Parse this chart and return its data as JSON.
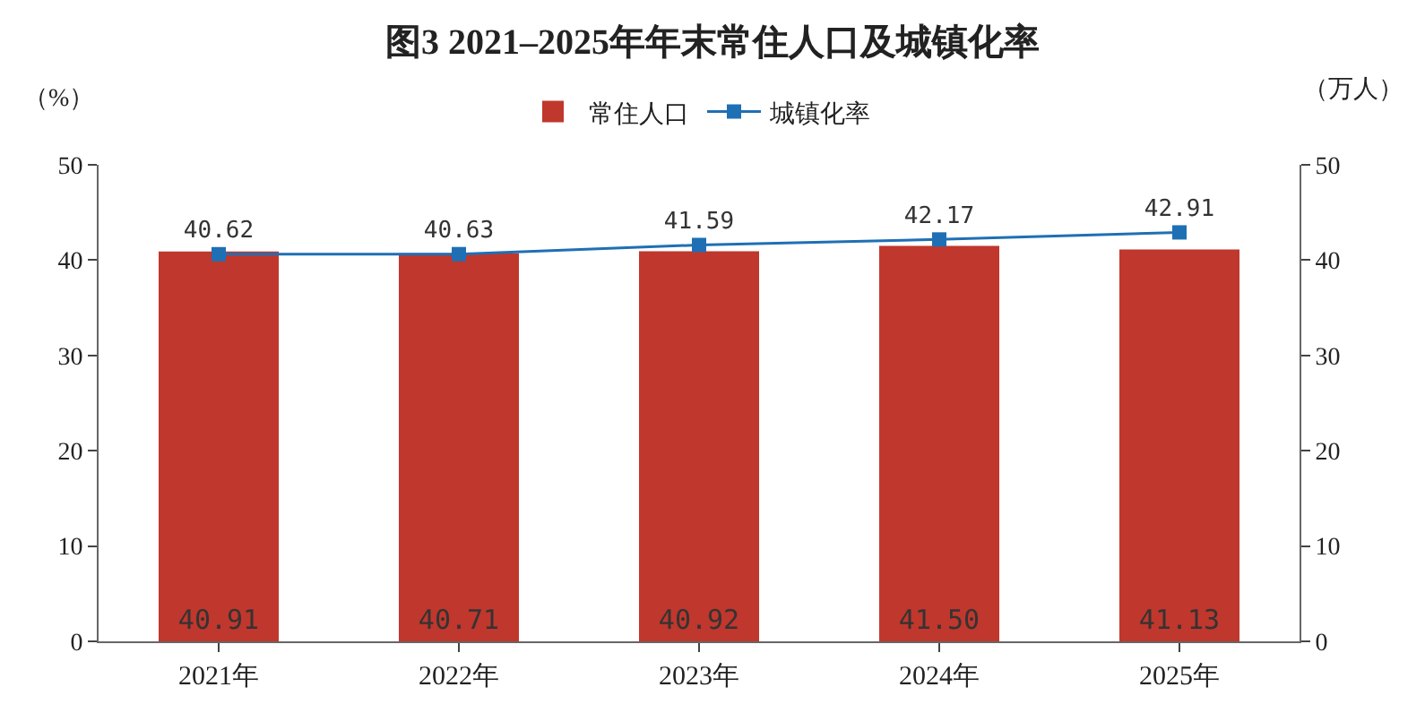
{
  "chart_data": {
    "type": "bar",
    "title": "图3 2021–2025年年末常住人口及城镇化率",
    "ylabel": "（%）",
    "y2label": "（万人）",
    "categories": [
      "2021年",
      "2022年",
      "2023年",
      "2024年",
      "2025年"
    ],
    "series": [
      {
        "name": "常住人口",
        "axis": "y2",
        "color": "#c0372d",
        "values": [
          40.91,
          40.71,
          40.92,
          41.5,
          41.13
        ],
        "value_labels": [
          "40.91",
          "40.71",
          "40.92",
          "41.50",
          "41.13"
        ]
      },
      {
        "name": "城镇化率",
        "type": "line",
        "axis": "y",
        "color": "#1f6fb5",
        "marker": "square",
        "values": [
          40.62,
          40.63,
          41.59,
          42.17,
          42.91
        ],
        "value_labels": [
          "40.62",
          "40.63",
          "41.59",
          "42.17",
          "42.91"
        ]
      }
    ],
    "ylim": [
      0,
      50
    ],
    "yticks": [
      0,
      10,
      20,
      30,
      40,
      50
    ],
    "y2lim": [
      0,
      50
    ],
    "y2ticks": [
      0,
      10,
      20,
      30,
      40,
      50
    ],
    "grid": false,
    "legend": "top"
  }
}
